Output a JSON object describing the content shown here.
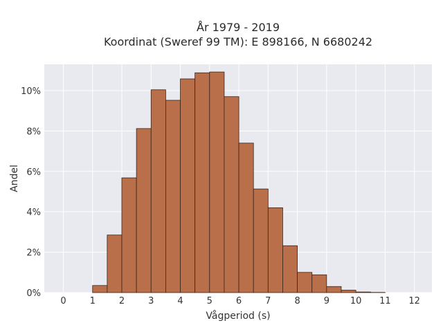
{
  "chart_data": {
    "type": "bar",
    "title_line1": "År 1979 - 2019",
    "title_line2": "Koordinat (Sweref 99 TM): E 898166, N 6680242",
    "xlabel": "Vågperiod (s)",
    "ylabel": "Andel",
    "bin_width": 0.5,
    "bins": [
      {
        "x": 0.0,
        "value": 0.0
      },
      {
        "x": 1.0,
        "value": 0.35
      },
      {
        "x": 1.5,
        "value": 2.85
      },
      {
        "x": 2.0,
        "value": 5.68
      },
      {
        "x": 2.5,
        "value": 8.12
      },
      {
        "x": 3.0,
        "value": 10.04
      },
      {
        "x": 3.5,
        "value": 9.52
      },
      {
        "x": 4.0,
        "value": 10.58
      },
      {
        "x": 4.5,
        "value": 10.88
      },
      {
        "x": 5.0,
        "value": 10.92
      },
      {
        "x": 5.5,
        "value": 9.7
      },
      {
        "x": 6.0,
        "value": 7.4
      },
      {
        "x": 6.5,
        "value": 5.13
      },
      {
        "x": 7.0,
        "value": 4.2
      },
      {
        "x": 7.5,
        "value": 2.32
      },
      {
        "x": 8.0,
        "value": 1.0
      },
      {
        "x": 8.5,
        "value": 0.88
      },
      {
        "x": 9.0,
        "value": 0.3
      },
      {
        "x": 9.5,
        "value": 0.12
      },
      {
        "x": 10.0,
        "value": 0.03
      },
      {
        "x": 10.5,
        "value": 0.01
      }
    ],
    "xlim": [
      -0.65,
      12.6
    ],
    "ylim": [
      0,
      11.3
    ],
    "xticks": [
      {
        "value": 0,
        "label": "0"
      },
      {
        "value": 1,
        "label": "1"
      },
      {
        "value": 2,
        "label": "2"
      },
      {
        "value": 3,
        "label": "3"
      },
      {
        "value": 4,
        "label": "4"
      },
      {
        "value": 5,
        "label": "5"
      },
      {
        "value": 6,
        "label": "6"
      },
      {
        "value": 7,
        "label": "7"
      },
      {
        "value": 8,
        "label": "8"
      },
      {
        "value": 9,
        "label": "9"
      },
      {
        "value": 10,
        "label": "10"
      },
      {
        "value": 11,
        "label": "11"
      },
      {
        "value": 12,
        "label": "12"
      }
    ],
    "yticks": [
      {
        "value": 0,
        "label": "0%"
      },
      {
        "value": 2,
        "label": "2%"
      },
      {
        "value": 4,
        "label": "4%"
      },
      {
        "value": 6,
        "label": "6%"
      },
      {
        "value": 8,
        "label": "8%"
      },
      {
        "value": 10,
        "label": "10%"
      }
    ],
    "grid": true,
    "colors": {
      "bar_fill": "#b86f4a",
      "bar_stroke": "#3a2418",
      "plot_bg": "#e9e9f0",
      "grid": "#ffffff"
    }
  }
}
